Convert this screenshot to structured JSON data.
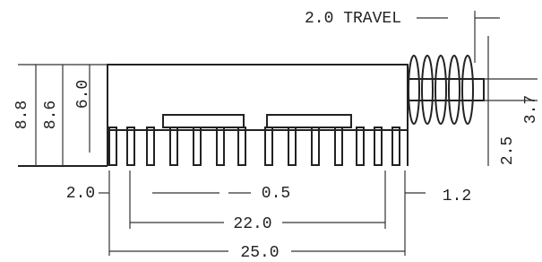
{
  "labels": {
    "travel": "2.0 TRAVEL",
    "height_a": "8.8",
    "height_b": "8.6",
    "height_c": "6.0",
    "shaft_width": "3.7",
    "shaft_offset": "2.5",
    "left_margin": "2.0",
    "pin_pitch": "0.5",
    "right_margin": "1.2",
    "pin_span": "22.0",
    "overall_length": "25.0"
  }
}
